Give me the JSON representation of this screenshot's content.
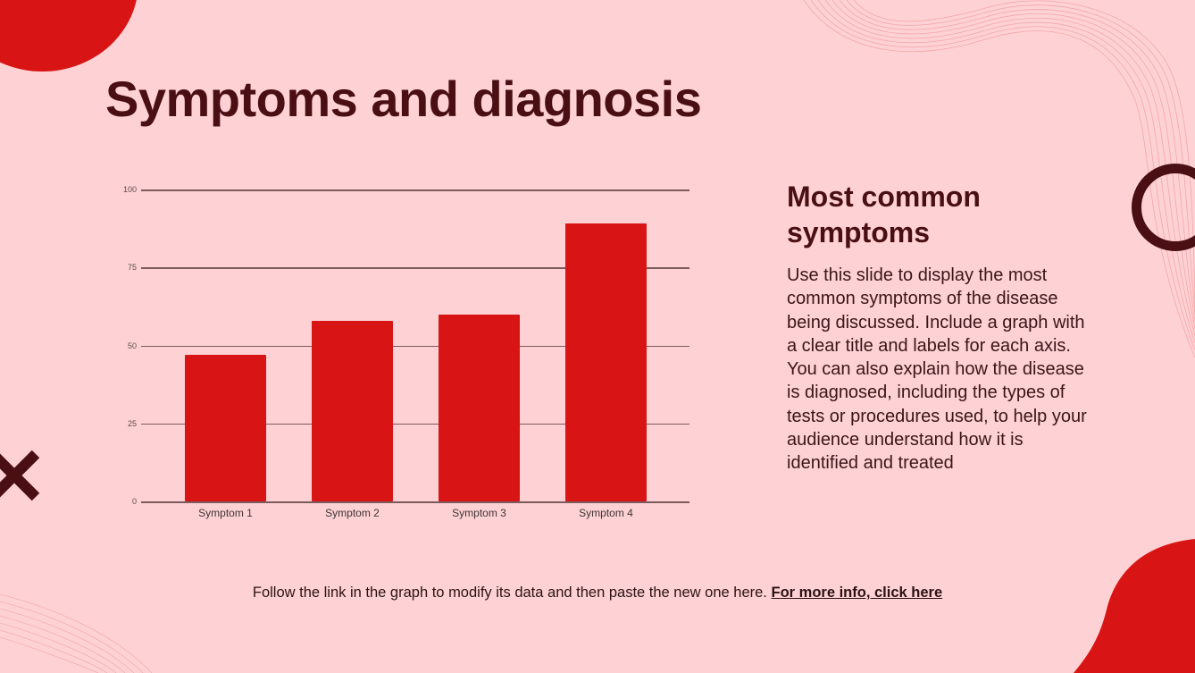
{
  "slide": {
    "title": "Symptoms and diagnosis",
    "side_heading": "Most common symptoms",
    "side_body": "Use this slide to display the most common symptoms of the disease being discussed. Include a graph with a clear title and labels for each axis. You can also explain how the disease is diagnosed, including the types of tests or procedures used, to help your audience understand how it is identified and treated",
    "footer_text": "Follow the link in the graph to modify its data and then paste the new one here. ",
    "footer_link": "For more info, click here"
  },
  "colors": {
    "background": "#fed2d4",
    "accent_red": "#d81414",
    "dark_maroon": "#4a0f12"
  },
  "chart_data": {
    "type": "bar",
    "title": "",
    "xlabel": "",
    "ylabel": "",
    "categories": [
      "Symptom 1",
      "Symptom 2",
      "Symptom 3",
      "Symptom 4"
    ],
    "values": [
      47,
      58,
      60,
      89
    ],
    "ylim": [
      0,
      100
    ],
    "yticks": [
      "0",
      "25",
      "50",
      "75",
      "100"
    ],
    "grid": true,
    "legend": "none",
    "bar_color": "#d81414"
  }
}
